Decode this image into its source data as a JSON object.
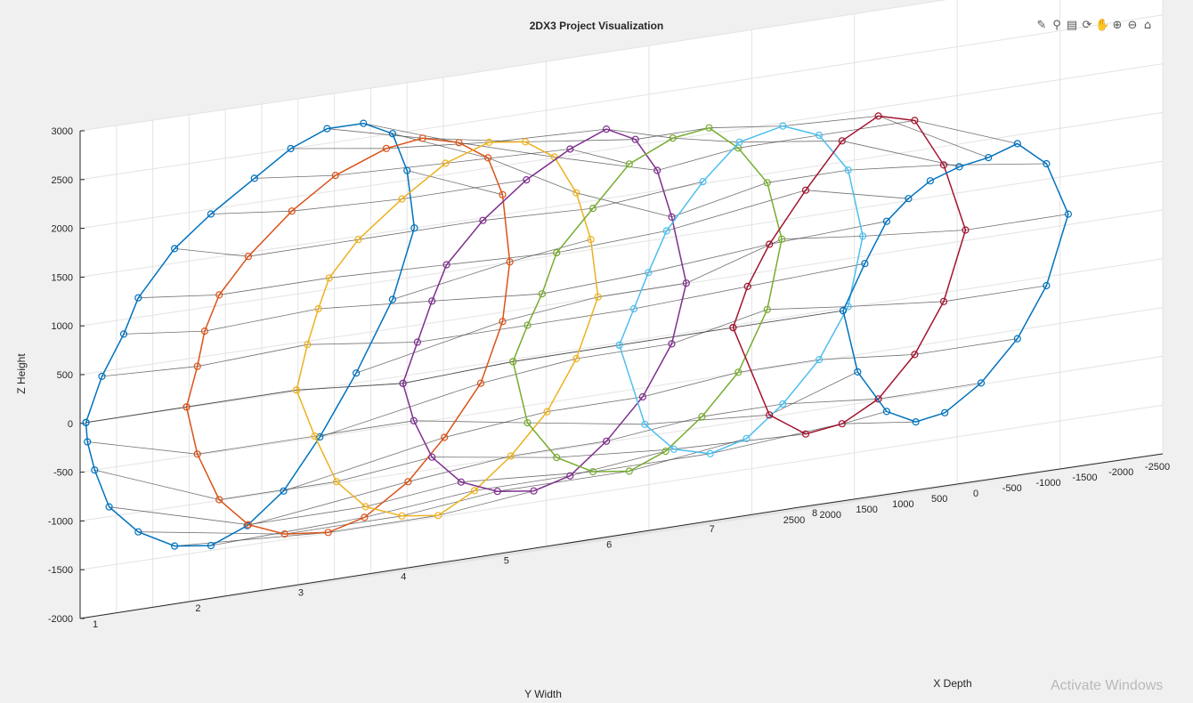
{
  "window": {
    "watermark": "Activate Windows"
  },
  "toolbar": {
    "items": [
      {
        "name": "brush-data-icon",
        "glyph": "✎"
      },
      {
        "name": "data-tips-icon",
        "glyph": "⚲"
      },
      {
        "name": "export-icon",
        "glyph": "▤"
      },
      {
        "name": "rotate-3d-icon",
        "glyph": "⟳"
      },
      {
        "name": "pan-icon",
        "glyph": "✋"
      },
      {
        "name": "zoom-in-icon",
        "glyph": "⊕"
      },
      {
        "name": "zoom-out-icon",
        "glyph": "⊖"
      },
      {
        "name": "home-icon",
        "glyph": "⌂"
      }
    ]
  },
  "chart_data": {
    "type": "line3d",
    "title": "2DX3 Project Visualization",
    "xlabel": "X Depth",
    "ylabel": "Y Width",
    "zlabel": "Z Height",
    "xlim": [
      1,
      8
    ],
    "ylim": [
      -2500,
      2500
    ],
    "zlim": [
      -2000,
      3000
    ],
    "x_ticks": [
      "1",
      "2",
      "3",
      "4",
      "5",
      "6",
      "7",
      "8"
    ],
    "y_ticks": [
      "-2500",
      "-2000",
      "-1500",
      "-1000",
      "-500",
      "0",
      "500",
      "1000",
      "1500",
      "2000",
      "2500"
    ],
    "z_ticks": [
      "-2000",
      "-1500",
      "-1000",
      "-500",
      "0",
      "500",
      "1000",
      "1500",
      "2000",
      "2500",
      "3000"
    ],
    "grid": true,
    "marker": "circle",
    "colors": [
      "#0072BD",
      "#D95319",
      "#EDB120",
      "#7E2F8E",
      "#77AC30",
      "#4DBEEE",
      "#A2142F"
    ],
    "connector_color": "#404040",
    "scans": [
      {
        "x": 1,
        "y": [
          2420,
          2200,
          1900,
          1700,
          1200,
          700,
          100,
          -400,
          -900,
          -1400,
          -1800,
          -2000,
          -2100,
          -1800,
          -1300,
          -800,
          -300,
          200,
          700,
          1200,
          1700,
          2100,
          2300,
          2400,
          2420
        ],
        "z": [
          0,
          450,
          850,
          1200,
          1650,
          1950,
          2250,
          2500,
          2650,
          2650,
          2500,
          2100,
          1500,
          800,
          100,
          -500,
          -1000,
          -1300,
          -1450,
          -1400,
          -1200,
          -900,
          -500,
          -200,
          0
        ]
      },
      {
        "x": 2,
        "y": [
          2450,
          2300,
          2200,
          2000,
          1600,
          1000,
          400,
          -300,
          -800,
          -1300,
          -1700,
          -1900,
          -2000,
          -1900,
          -1600,
          -1100,
          -600,
          0,
          500,
          1100,
          1600,
          2000,
          2300,
          2450
        ],
        "z": [
          0,
          400,
          750,
          1100,
          1450,
          1850,
          2150,
          2350,
          2400,
          2300,
          2100,
          1700,
          1000,
          400,
          -200,
          -700,
          -1100,
          -1400,
          -1500,
          -1450,
          -1300,
          -1000,
          -500,
          0
        ]
      },
      {
        "x": 3,
        "y": [
          2350,
          2200,
          2050,
          1900,
          1500,
          900,
          300,
          -300,
          -800,
          -1200,
          -1500,
          -1700,
          -1800,
          -1500,
          -1100,
          -600,
          -100,
          400,
          900,
          1400,
          1800,
          2100,
          2350
        ],
        "z": [
          0,
          450,
          800,
          1100,
          1450,
          1800,
          2100,
          2250,
          2200,
          2000,
          1600,
          1100,
          500,
          -100,
          -600,
          -1000,
          -1300,
          -1500,
          -1450,
          -1300,
          -1000,
          -500,
          0
        ]
      },
      {
        "x": 4,
        "y": [
          2300,
          2100,
          1900,
          1700,
          1200,
          600,
          0,
          -500,
          -900,
          -1200,
          -1400,
          -1600,
          -1400,
          -1000,
          -500,
          0,
          500,
          1000,
          1500,
          1900,
          2150,
          2300
        ],
        "z": [
          -100,
          300,
          700,
          1050,
          1450,
          1800,
          2050,
          2200,
          2050,
          1700,
          1200,
          500,
          -100,
          -600,
          -1000,
          -1300,
          -1400,
          -1350,
          -1200,
          -900,
          -500,
          -100
        ]
      },
      {
        "x": 5,
        "y": [
          2200,
          2000,
          1800,
          1600,
          1100,
          600,
          0,
          -500,
          -900,
          -1300,
          -1500,
          -1300,
          -900,
          -400,
          100,
          600,
          1100,
          1600,
          2000,
          2200
        ],
        "z": [
          -50,
          300,
          600,
          1000,
          1400,
          1800,
          2000,
          2050,
          1800,
          1400,
          800,
          100,
          -500,
          -900,
          -1200,
          -1350,
          -1300,
          -1100,
          -700,
          -50
        ]
      },
      {
        "x": 6,
        "y": [
          2150,
          1950,
          1750,
          1500,
          1000,
          500,
          -100,
          -600,
          -1000,
          -1200,
          -1000,
          -600,
          -100,
          400,
          900,
          1400,
          1800,
          2150
        ],
        "z": [
          -50,
          300,
          650,
          1050,
          1500,
          1850,
          1950,
          1800,
          1400,
          700,
          0,
          -500,
          -900,
          -1200,
          -1300,
          -1200,
          -900,
          -50
        ]
      },
      {
        "x": 7,
        "y": [
          2000,
          1800,
          1500,
          1000,
          500,
          0,
          -500,
          -900,
          -1200,
          -900,
          -500,
          0,
          500,
          1000,
          1500,
          2000
        ],
        "z": [
          -50,
          350,
          750,
          1250,
          1700,
          1900,
          1800,
          1300,
          600,
          -100,
          -600,
          -1000,
          -1200,
          -1250,
          -1000,
          -50
        ]
      },
      {
        "x": 8,
        "y": [
          1900,
          1600,
          1300,
          1000,
          700,
          300,
          -100,
          -500,
          -900,
          -1200,
          -900,
          -500,
          0,
          500,
          900,
          1300,
          1700,
          1900
        ],
        "z": [
          -50,
          400,
          800,
          1000,
          1150,
          1250,
          1300,
          1400,
          1150,
          600,
          -100,
          -600,
          -1000,
          -1250,
          -1300,
          -1150,
          -700,
          -50
        ]
      }
    ]
  }
}
